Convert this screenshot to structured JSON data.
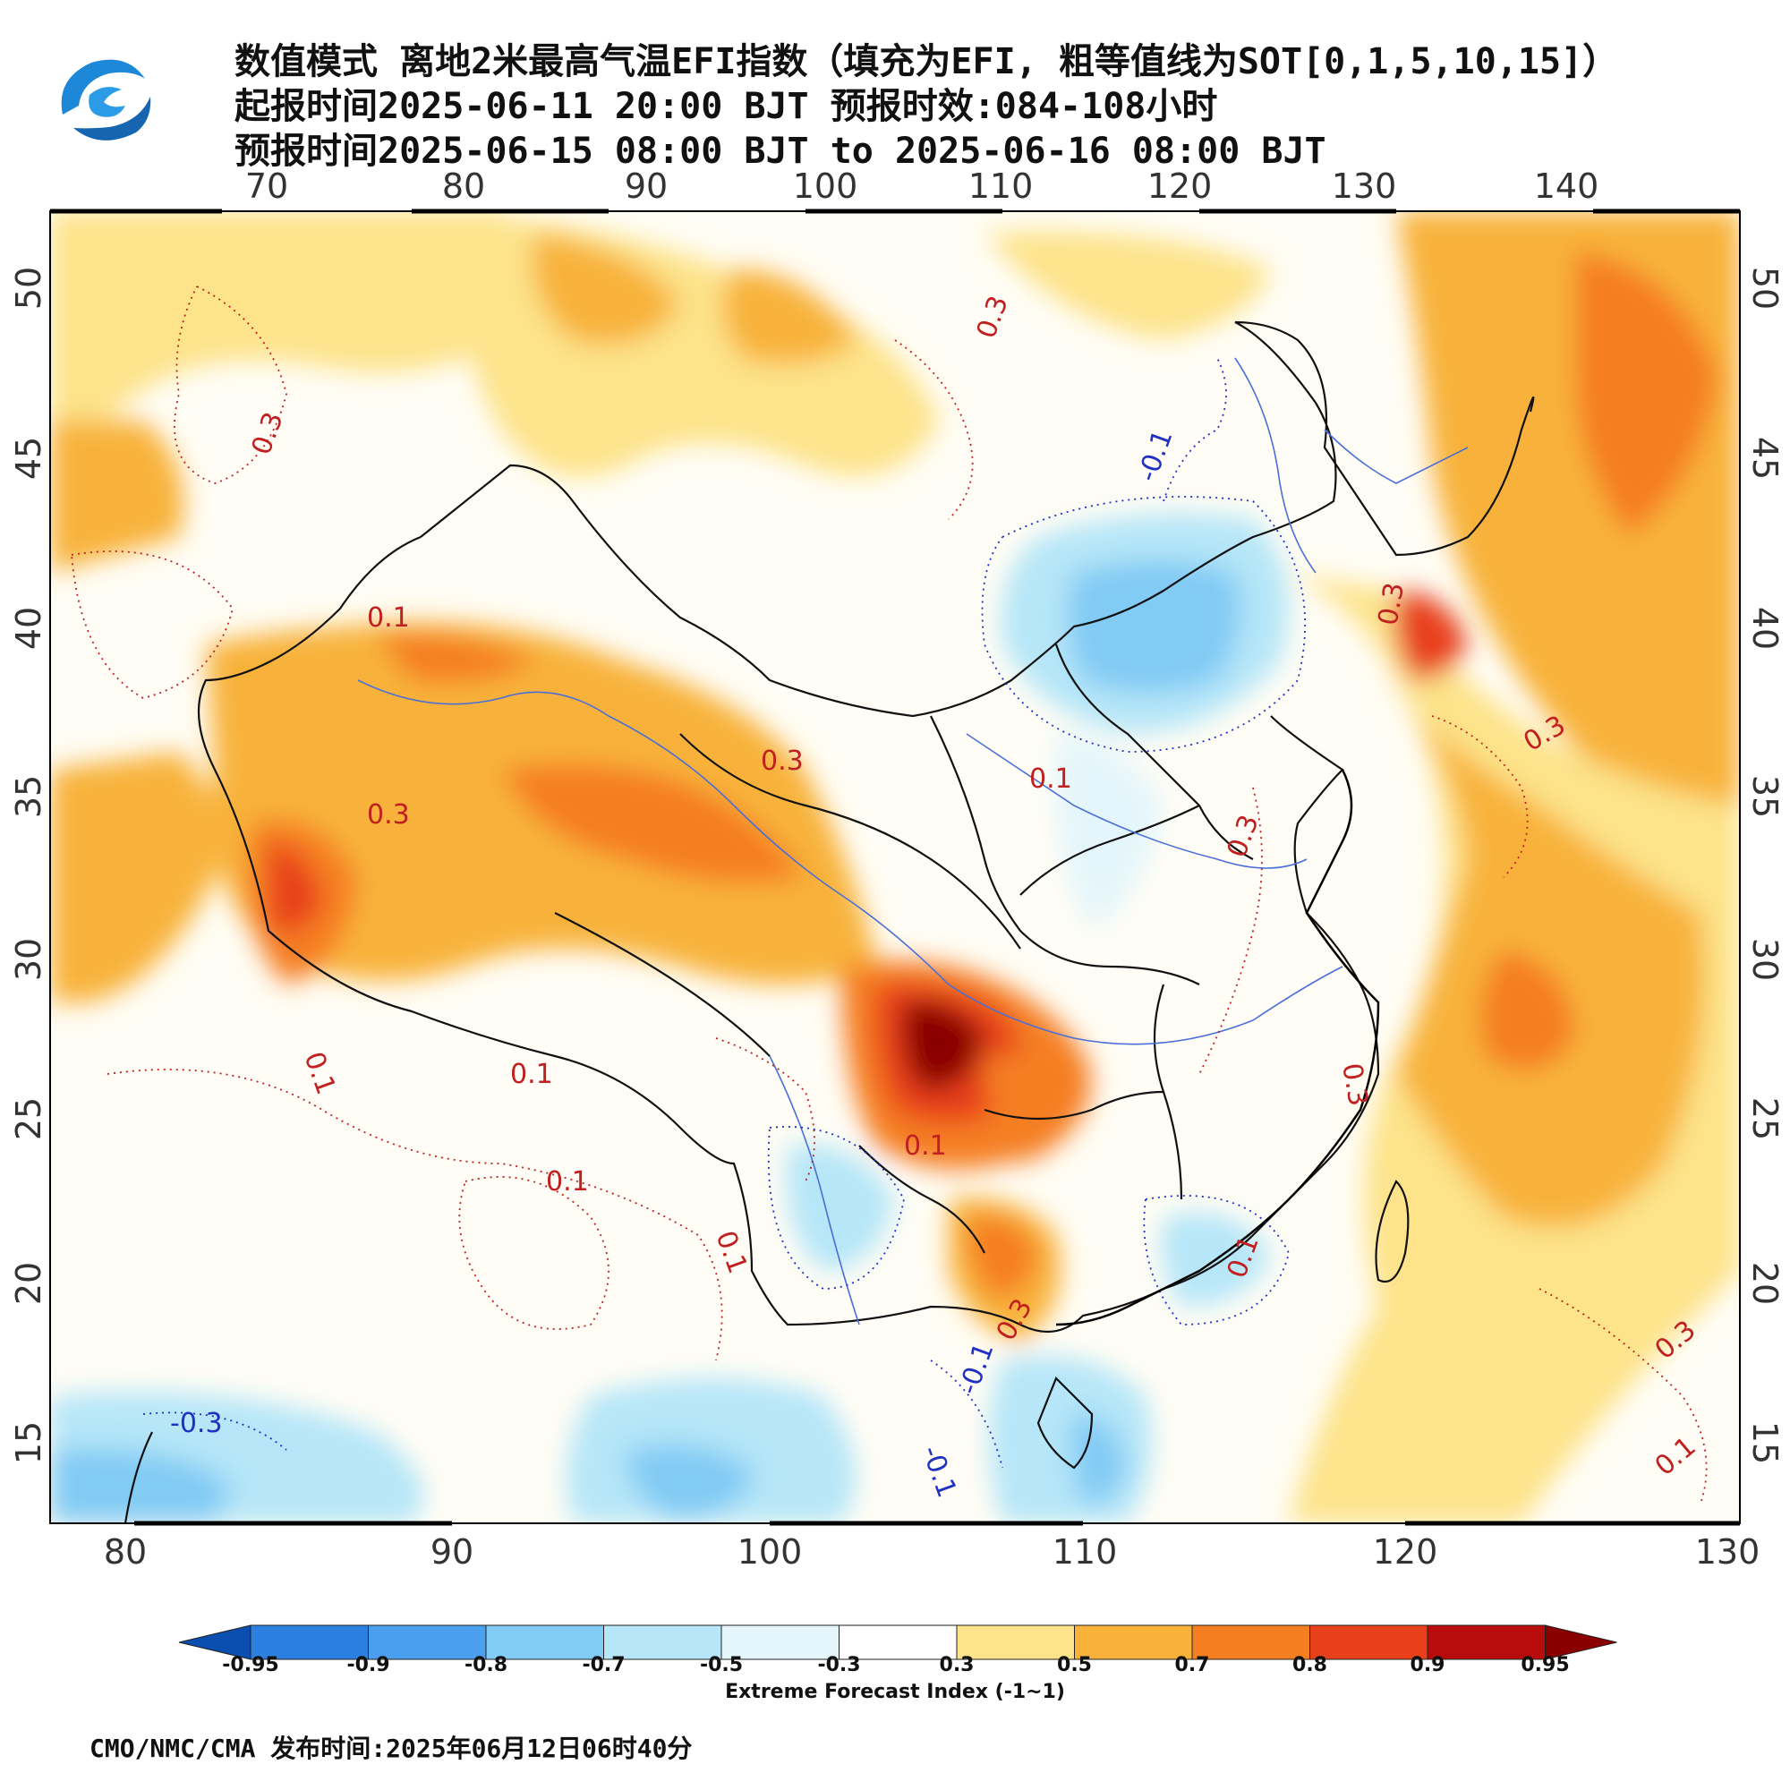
{
  "header": {
    "title_line1": "数值模式 离地2米最高气温EFI指数（填充为EFI, 粗等值线为SOT[0,1,5,10,15]）",
    "title_line2": "起报时间2025-06-11 20:00 BJT 预报时效:084-108小时",
    "title_line3": "预报时间2025-06-15 08:00 BJT to 2025-06-16 08:00 BJT"
  },
  "map": {
    "top_lon_labels": [
      "70",
      "80",
      "90",
      "100",
      "110",
      "120",
      "130",
      "140"
    ],
    "bottom_lon_labels": [
      "80",
      "90",
      "100",
      "110",
      "120",
      "130"
    ],
    "lat_labels": [
      "50",
      "45",
      "40",
      "35",
      "30",
      "25",
      "20",
      "15"
    ],
    "contour_labels": [
      "0.3",
      "0.3",
      "0.1",
      "0.3",
      "0.3",
      "0.3",
      "0.1",
      "0.1",
      "-0.1",
      "0.3",
      "0.3",
      "0.3",
      "0.1",
      "0.1",
      "0.3",
      "0.1",
      "-0.1",
      "-0.1",
      "-0.3",
      "0.1",
      "0.1",
      "0.3",
      "0.1"
    ]
  },
  "colorbar": {
    "labels": [
      "-0.95",
      "-0.9",
      "-0.8",
      "-0.7",
      "-0.5",
      "-0.3",
      "0.3",
      "0.5",
      "0.7",
      "0.8",
      "0.9",
      "0.95"
    ],
    "colors": [
      "#0a4fb0",
      "#2a7fe0",
      "#4aa0ee",
      "#82cbf4",
      "#b6e6f8",
      "#e4f6fb",
      "#ffffff",
      "#fde38a",
      "#f8b23a",
      "#f57e20",
      "#e8401a",
      "#b80c0c",
      "#8a0000"
    ],
    "title": "Extreme Forecast Index (-1~1)"
  },
  "footer": {
    "text": "CMO/NMC/CMA 发布时间:2025年06月12日06时40分"
  }
}
